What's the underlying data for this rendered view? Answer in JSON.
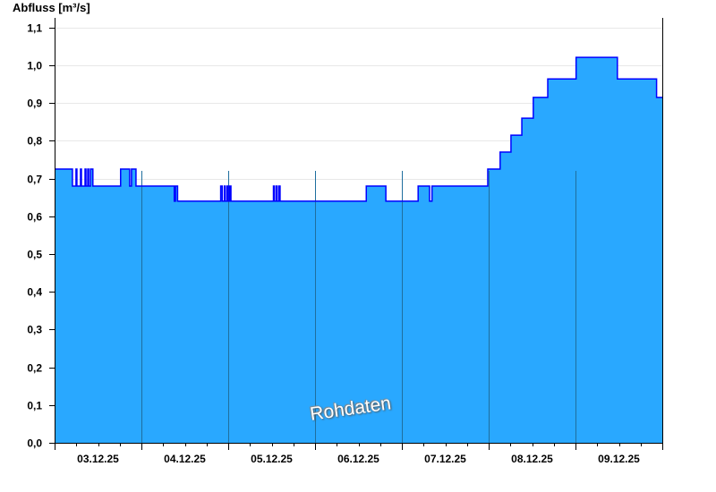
{
  "chart_data": {
    "type": "area",
    "ylabel": "Abfluss [m³/s]",
    "ylim": [
      0,
      1.15
    ],
    "yticks": [
      "0,0",
      "0,1",
      "0,2",
      "0,3",
      "0,4",
      "0,5",
      "0,6",
      "0,7",
      "0,8",
      "0,9",
      "1,0",
      "1,1"
    ],
    "xlim": [
      "03.12.25 00:00",
      "10.12.25 00:00"
    ],
    "xticks": [
      "03.12.25",
      "04.12.25",
      "05.12.25",
      "06.12.25",
      "07.12.25",
      "08.12.25",
      "09.12.25"
    ],
    "grid": true,
    "watermark": "Rohdaten",
    "colors": {
      "fill": "#29a8ff",
      "line": "#0000ff",
      "day_separator": "#1f6e9e",
      "grid": "#e8e8e8"
    },
    "steps": [
      [
        "03.12.25 00:00",
        0.725
      ],
      [
        "03.12.25 04:56",
        0.68
      ],
      [
        "03.12.25 05:55",
        0.725
      ],
      [
        "03.12.25 06:10",
        0.68
      ],
      [
        "03.12.25 07:10",
        0.725
      ],
      [
        "03.12.25 07:25",
        0.68
      ],
      [
        "03.12.25 08:25",
        0.725
      ],
      [
        "03.12.25 08:40",
        0.68
      ],
      [
        "03.12.25 09:10",
        0.725
      ],
      [
        "03.12.25 09:25",
        0.68
      ],
      [
        "03.12.25 09:55",
        0.725
      ],
      [
        "03.12.25 10:35",
        0.68
      ],
      [
        "03.12.25 18:15",
        0.725
      ],
      [
        "03.12.25 20:45",
        0.68
      ],
      [
        "03.12.25 21:15",
        0.725
      ],
      [
        "03.12.25 22:30",
        0.68
      ],
      [
        "04.12.25 09:05",
        0.64
      ],
      [
        "04.12.25 09:25",
        0.68
      ],
      [
        "04.12.25 10:00",
        0.64
      ],
      [
        "04.12.25 21:55",
        0.68
      ],
      [
        "04.12.25 22:20",
        0.64
      ],
      [
        "04.12.25 22:55",
        0.68
      ],
      [
        "04.12.25 23:10",
        0.64
      ],
      [
        "04.12.25 23:40",
        0.68
      ],
      [
        "05.12.25 00:00",
        0.64
      ],
      [
        "05.12.25 00:25",
        0.68
      ],
      [
        "05.12.25 00:45",
        0.64
      ],
      [
        "05.12.25 12:30",
        0.68
      ],
      [
        "05.12.25 12:45",
        0.64
      ],
      [
        "05.12.25 13:15",
        0.68
      ],
      [
        "05.12.25 13:30",
        0.64
      ],
      [
        "05.12.25 14:00",
        0.68
      ],
      [
        "05.12.25 14:20",
        0.64
      ],
      [
        "06.12.25 14:10",
        0.68
      ],
      [
        "06.12.25 19:35",
        0.64
      ],
      [
        "07.12.25 04:30",
        0.68
      ],
      [
        "07.12.25 07:40",
        0.64
      ],
      [
        "07.12.25 08:20",
        0.68
      ],
      [
        "07.12.25 23:45",
        0.725
      ],
      [
        "08.12.25 03:10",
        0.77
      ],
      [
        "08.12.25 06:10",
        0.815
      ],
      [
        "08.12.25 09:10",
        0.86
      ],
      [
        "08.12.25 12:20",
        0.915
      ],
      [
        "08.12.25 16:20",
        0.964
      ],
      [
        "09.12.25 00:10",
        1.021
      ],
      [
        "09.12.25 11:35",
        0.964
      ],
      [
        "09.12.25 22:25",
        0.915
      ],
      [
        "10.12.25 00:00",
        0.915
      ]
    ]
  }
}
